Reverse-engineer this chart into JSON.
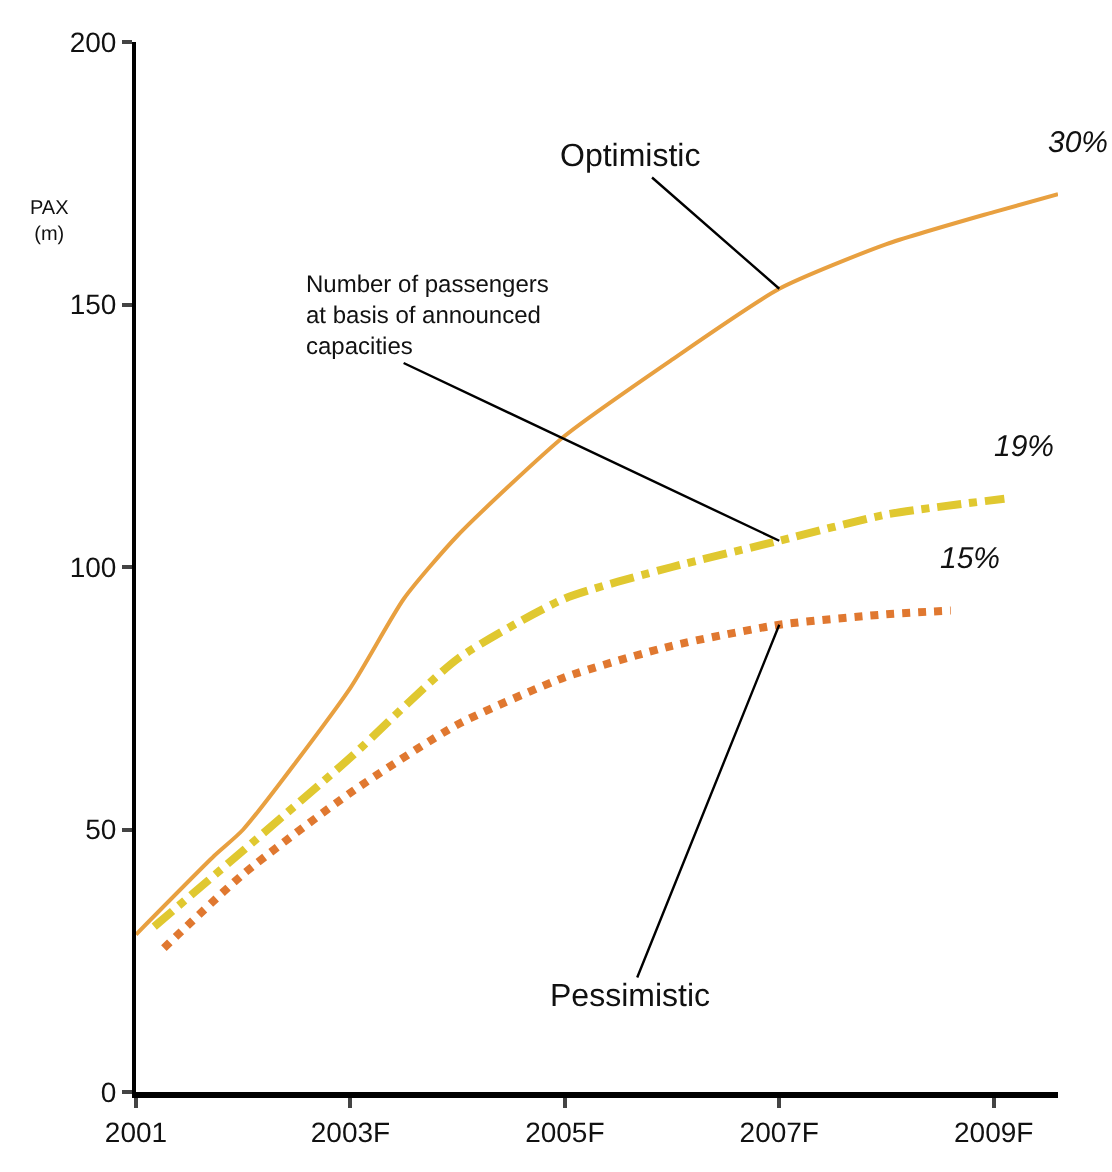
{
  "chart_data": {
    "type": "line",
    "ylabel": "PAX\n(m)",
    "xlim": [
      2001,
      2009.6
    ],
    "xticks": [
      {
        "value": 2001,
        "label": "2001"
      },
      {
        "value": 2003,
        "label": "2003F"
      },
      {
        "value": 2005,
        "label": "2005F"
      },
      {
        "value": 2007,
        "label": "2007F"
      },
      {
        "value": 2009,
        "label": "2009F"
      }
    ],
    "ylim": [
      0,
      200
    ],
    "yticks": [
      0,
      50,
      100,
      150,
      200
    ],
    "marker": "none",
    "series": [
      {
        "name": "Optimistic",
        "color": "#e8a040",
        "line_style": "solid",
        "x": [
          2001,
          2001.73,
          2002,
          2003,
          2003.5,
          2004,
          2005,
          2006,
          2007,
          2008,
          2009,
          2009.6
        ],
        "values": [
          30,
          45,
          50,
          77,
          94,
          106,
          125,
          139.5,
          153,
          161.5,
          167.6,
          171
        ]
      },
      {
        "name": "Number of passengers at basis of announced capacities",
        "color": "#e0c830",
        "line_style": "dashdot",
        "x": [
          2001.17,
          2002,
          2003,
          2004,
          2005,
          2006,
          2007,
          2008,
          2009.1
        ],
        "values": [
          31.5,
          46,
          63.7,
          82.5,
          94,
          100,
          105,
          110,
          113
        ]
      },
      {
        "name": "Pessimistic",
        "color": "#e07830",
        "line_style": "dotted",
        "x": [
          2001.26,
          2002,
          2003,
          2004,
          2005,
          2006,
          2007,
          2008,
          2008.6
        ],
        "values": [
          27.4,
          41.5,
          57,
          70,
          79,
          85,
          89,
          91,
          91.7
        ]
      }
    ],
    "annotations": [
      {
        "text": "30%",
        "x": 2009.6,
        "y": 171
      },
      {
        "text": "19%",
        "x": 2009.1,
        "y": 113
      },
      {
        "text": "15%",
        "x": 2008.6,
        "y": 91.7
      }
    ]
  }
}
